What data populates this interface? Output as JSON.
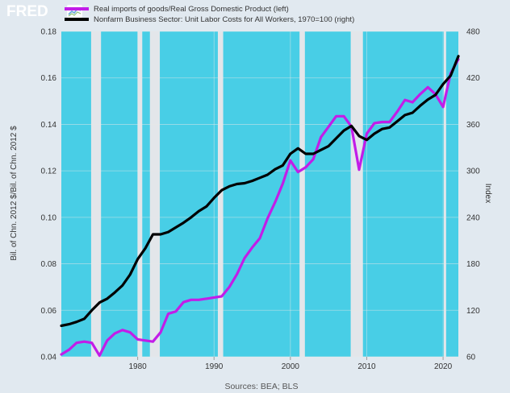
{
  "header": {
    "logo_text": "FRED",
    "logo_mark_icon": "fred-graph-icon"
  },
  "chart_data": {
    "type": "line",
    "title": "",
    "legend_position": "top-left",
    "grid": true,
    "y_left": {
      "label": "Bil. of Chn. 2012 $/Bil. of Chn. 2012 $",
      "range": [
        0.04,
        0.18
      ],
      "ticks": [
        "0.04",
        "0.06",
        "0.08",
        "0.10",
        "0.12",
        "0.14",
        "0.16",
        "0.18"
      ]
    },
    "y_right": {
      "label": "Index",
      "range": [
        60,
        480
      ],
      "ticks": [
        "60",
        "120",
        "180",
        "240",
        "300",
        "360",
        "420",
        "480"
      ]
    },
    "x_axis": {
      "range": [
        1970,
        2022
      ],
      "ticks": [
        "1980",
        "1990",
        "2000",
        "2010",
        "2020"
      ]
    },
    "shading_color": "#48cee6",
    "recession_color": "#e3e6ea",
    "recessions": [
      [
        1973.9,
        1975.2
      ],
      [
        1980.0,
        1980.6
      ],
      [
        1981.6,
        1982.9
      ],
      [
        1990.5,
        1991.2
      ],
      [
        2001.2,
        2001.9
      ],
      [
        2007.9,
        2009.5
      ],
      [
        2020.1,
        2020.4
      ]
    ],
    "series": [
      {
        "name": "Real imports of goods/Real Gross Domestic Product (left)",
        "axis": "left",
        "color": "#c21de8",
        "x": [
          1970,
          1971,
          1972,
          1973,
          1974,
          1975,
          1976,
          1977,
          1978,
          1979,
          1980,
          1981,
          1982,
          1983,
          1984,
          1985,
          1986,
          1987,
          1988,
          1989,
          1990,
          1991,
          1992,
          1993,
          1994,
          1995,
          1996,
          1997,
          1998,
          1999,
          2000,
          2001,
          2002,
          2003,
          2004,
          2005,
          2006,
          2007,
          2008,
          2009,
          2010,
          2011,
          2012,
          2013,
          2014,
          2015,
          2016,
          2017,
          2018,
          2019,
          2020,
          2021,
          2022
        ],
        "values": [
          0.041,
          0.043,
          0.046,
          0.0465,
          0.046,
          0.0405,
          0.047,
          0.05,
          0.0515,
          0.0505,
          0.0475,
          0.047,
          0.0465,
          0.0505,
          0.0585,
          0.0595,
          0.0635,
          0.0645,
          0.0645,
          0.065,
          0.0655,
          0.066,
          0.07,
          0.0755,
          0.0825,
          0.087,
          0.091,
          0.0995,
          0.1065,
          0.1145,
          0.1245,
          0.1195,
          0.1215,
          0.125,
          0.1345,
          0.139,
          0.1435,
          0.1435,
          0.139,
          0.1205,
          0.136,
          0.1405,
          0.141,
          0.141,
          0.1455,
          0.1505,
          0.1495,
          0.153,
          0.156,
          0.153,
          0.1475,
          0.162,
          0.168
        ]
      },
      {
        "name": "Nonfarm Business Sector: Unit Labor Costs for All Workers, 1970=100 (right)",
        "axis": "right",
        "color": "#000000",
        "x": [
          1970,
          1971,
          1972,
          1973,
          1974,
          1975,
          1976,
          1977,
          1978,
          1979,
          1980,
          1981,
          1982,
          1983,
          1984,
          1985,
          1986,
          1987,
          1988,
          1989,
          1990,
          1991,
          1992,
          1993,
          1994,
          1995,
          1996,
          1997,
          1998,
          1999,
          2000,
          2001,
          2002,
          2003,
          2004,
          2005,
          2006,
          2007,
          2008,
          2009,
          2010,
          2011,
          2012,
          2013,
          2014,
          2015,
          2016,
          2017,
          2018,
          2019,
          2020,
          2021,
          2022
        ],
        "values": [
          100,
          102,
          105,
          109,
          120,
          130,
          135,
          143,
          152,
          166,
          186,
          200,
          218,
          218,
          221,
          227,
          233,
          240,
          248,
          254,
          265,
          275,
          280,
          283,
          284,
          287,
          291,
          295,
          302,
          307,
          322,
          329,
          322,
          322,
          327,
          332,
          342,
          352,
          358,
          345,
          340,
          348,
          354,
          356,
          364,
          372,
          375,
          384,
          392,
          398,
          412,
          423,
          448
        ]
      }
    ]
  },
  "footer": {
    "sources": "Sources: BEA; BLS"
  }
}
